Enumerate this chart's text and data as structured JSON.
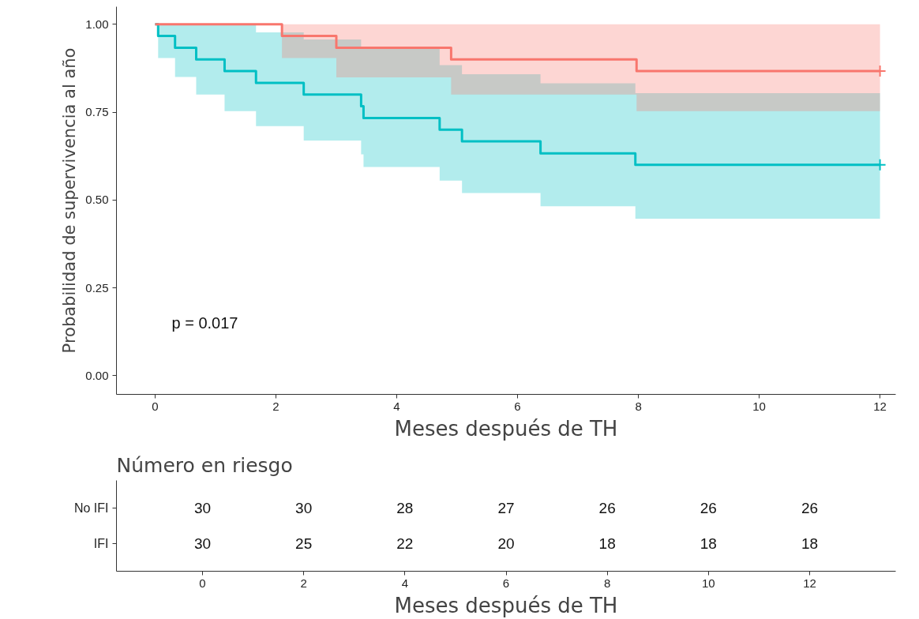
{
  "chart_data": [
    {
      "type": "step",
      "xlabel": "Meses después de TH",
      "ylabel": "Probabilidad de supervivencia al año",
      "annotations": [
        "p = 0.017"
      ],
      "xlim": [
        -0.64,
        12.26
      ],
      "ylim": [
        -0.053,
        1.05
      ],
      "xticks": [
        0,
        2,
        4,
        6,
        8,
        10,
        12
      ],
      "yticks": [
        {
          "value": 0,
          "label": "0.00"
        },
        {
          "value": 0.25,
          "label": "0.25"
        },
        {
          "value": 0.5,
          "label": "0.50"
        },
        {
          "value": 0.75,
          "label": "0.75"
        },
        {
          "value": 1,
          "label": "1.00"
        }
      ],
      "grid": false,
      "series": [
        {
          "color": "#00bfc4",
          "x": [
            0,
            0.05,
            0.33,
            0.68,
            1.15,
            1.67,
            2.46,
            3.41,
            3.45,
            4.71,
            5.08,
            6.38,
            7.95,
            12
          ],
          "values": [
            1.0,
            0.967,
            0.933,
            0.9,
            0.867,
            0.833,
            0.8,
            0.767,
            0.733,
            0.7,
            0.667,
            0.633,
            0.6,
            0.6
          ],
          "lower": [
            1.0,
            0.904,
            0.85,
            0.8,
            0.753,
            0.71,
            0.669,
            0.63,
            0.594,
            0.555,
            0.52,
            0.482,
            0.447,
            0.447
          ],
          "upper": [
            1.0,
            1.0,
            1.0,
            1.0,
            1.0,
            0.977,
            0.957,
            0.93,
            0.93,
            0.884,
            0.858,
            0.832,
            0.804,
            0.804
          ]
        },
        {
          "color": "#f8766d",
          "x": [
            0,
            2.1,
            3.0,
            4.9,
            7.97,
            12
          ],
          "values": [
            1.0,
            0.967,
            0.933,
            0.9,
            0.867,
            0.867
          ],
          "lower": [
            1.0,
            0.904,
            0.849,
            0.8,
            0.753,
            0.753
          ],
          "upper": [
            1.0,
            1.0,
            1.0,
            1.0,
            1.0,
            1.0
          ]
        },
        {
          "type": "scatter",
          "marker": "cross",
          "color": "#f8766d",
          "x": [
            12
          ],
          "values": [
            0.867
          ]
        },
        {
          "type": "scatter",
          "marker": "cross",
          "color": "#00bfc4",
          "x": [
            12
          ],
          "values": [
            0.6
          ]
        }
      ]
    },
    {
      "type": "heatmap",
      "title": "Número en riesgo",
      "xlabel": "Meses después de TH",
      "data_labels": true,
      "categories": [
        "0",
        "2",
        "4",
        "6",
        "8",
        "10",
        "12"
      ],
      "y_categories": [
        "No IFI",
        "IFI"
      ],
      "cells": [
        [
          30,
          30,
          28,
          27,
          26,
          26,
          26
        ],
        [
          30,
          25,
          22,
          20,
          18,
          18,
          18
        ]
      ]
    }
  ]
}
